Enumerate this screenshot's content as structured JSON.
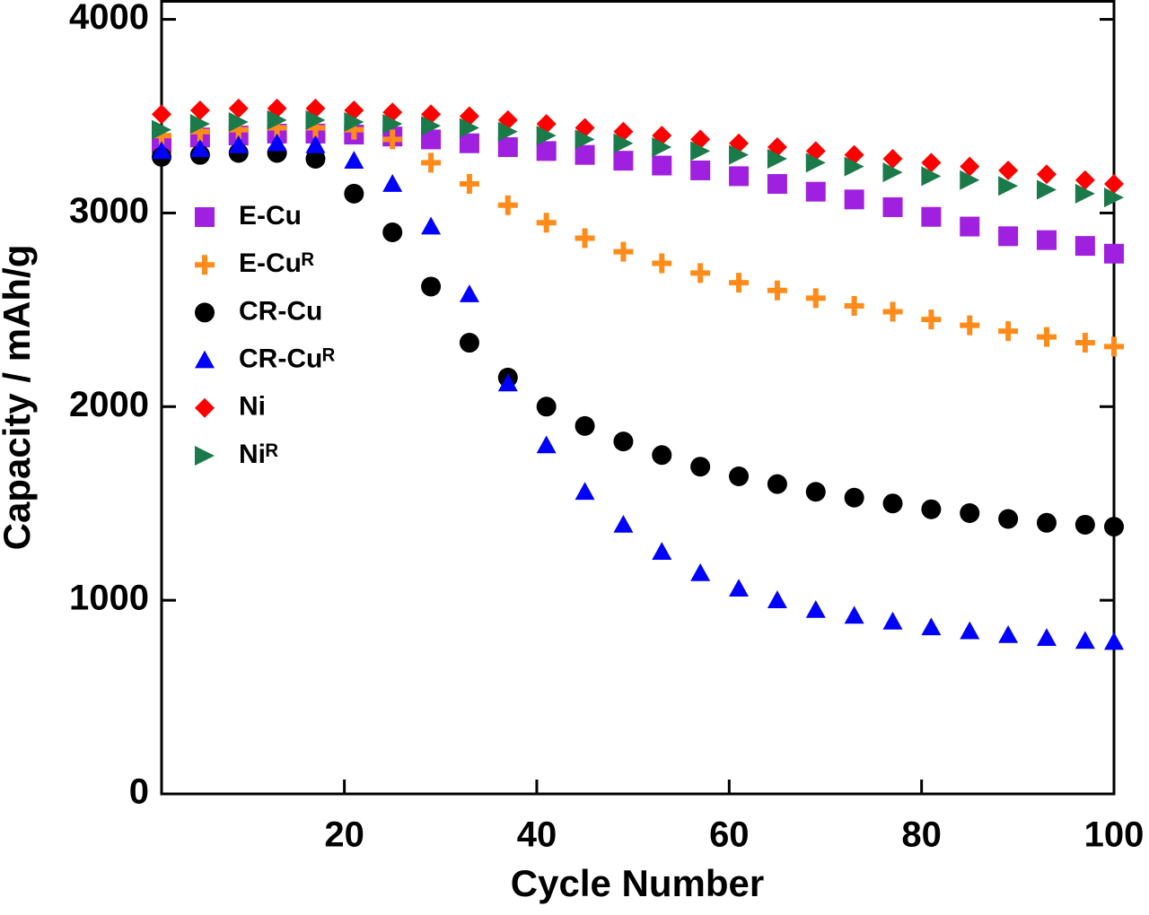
{
  "chart_data": {
    "type": "scatter",
    "xlabel": "Cycle Number",
    "ylabel": "Capacity / mAh/g",
    "x": [
      1,
      5,
      9,
      13,
      17,
      21,
      25,
      29,
      33,
      37,
      41,
      45,
      49,
      53,
      57,
      61,
      65,
      69,
      73,
      77,
      81,
      85,
      89,
      93,
      97,
      100
    ],
    "xlim": [
      1,
      100
    ],
    "xticks": [
      20,
      40,
      60,
      80,
      100
    ],
    "ylim": [
      0,
      4100
    ],
    "yticks": [
      0,
      1000,
      2000,
      3000,
      4000
    ],
    "series": [
      {
        "name": "E-Cu",
        "color": "#a020e0",
        "marker": "square",
        "values": [
          3360,
          3390,
          3400,
          3410,
          3410,
          3405,
          3395,
          3380,
          3360,
          3340,
          3320,
          3300,
          3270,
          3245,
          3220,
          3190,
          3150,
          3110,
          3070,
          3030,
          2980,
          2930,
          2880,
          2860,
          2830,
          2790
        ]
      },
      {
        "name": "E-Cuᴿ",
        "color": "#ff8c1a",
        "marker": "plus",
        "values": [
          3400,
          3420,
          3430,
          3440,
          3440,
          3430,
          3380,
          3260,
          3150,
          3040,
          2950,
          2870,
          2800,
          2740,
          2690,
          2640,
          2600,
          2560,
          2520,
          2490,
          2450,
          2420,
          2390,
          2360,
          2330,
          2310
        ]
      },
      {
        "name": "CR-Cu",
        "color": "#000000",
        "marker": "circle",
        "values": [
          3290,
          3300,
          3310,
          3310,
          3280,
          3100,
          2900,
          2620,
          2330,
          2150,
          2000,
          1900,
          1820,
          1750,
          1690,
          1640,
          1600,
          1560,
          1530,
          1500,
          1470,
          1450,
          1420,
          1400,
          1390,
          1380
        ]
      },
      {
        "name": "CR-Cuᴿ",
        "color": "#0000ff",
        "marker": "triangle",
        "values": [
          3320,
          3330,
          3350,
          3360,
          3350,
          3270,
          3150,
          2930,
          2580,
          2120,
          1800,
          1560,
          1390,
          1250,
          1140,
          1060,
          1000,
          950,
          920,
          890,
          860,
          840,
          820,
          805,
          790,
          785
        ]
      },
      {
        "name": "Ni",
        "color": "#ff0000",
        "marker": "diamond",
        "values": [
          3510,
          3530,
          3540,
          3540,
          3540,
          3530,
          3520,
          3510,
          3500,
          3480,
          3460,
          3440,
          3420,
          3400,
          3380,
          3360,
          3340,
          3320,
          3300,
          3280,
          3260,
          3240,
          3220,
          3200,
          3170,
          3150
        ]
      },
      {
        "name": "Niᴿ",
        "color": "#1a7a4a",
        "marker": "right-triangle",
        "values": [
          3430,
          3460,
          3470,
          3480,
          3480,
          3470,
          3460,
          3450,
          3440,
          3420,
          3400,
          3380,
          3360,
          3340,
          3320,
          3300,
          3280,
          3260,
          3240,
          3210,
          3190,
          3170,
          3140,
          3120,
          3100,
          3080
        ]
      }
    ]
  }
}
